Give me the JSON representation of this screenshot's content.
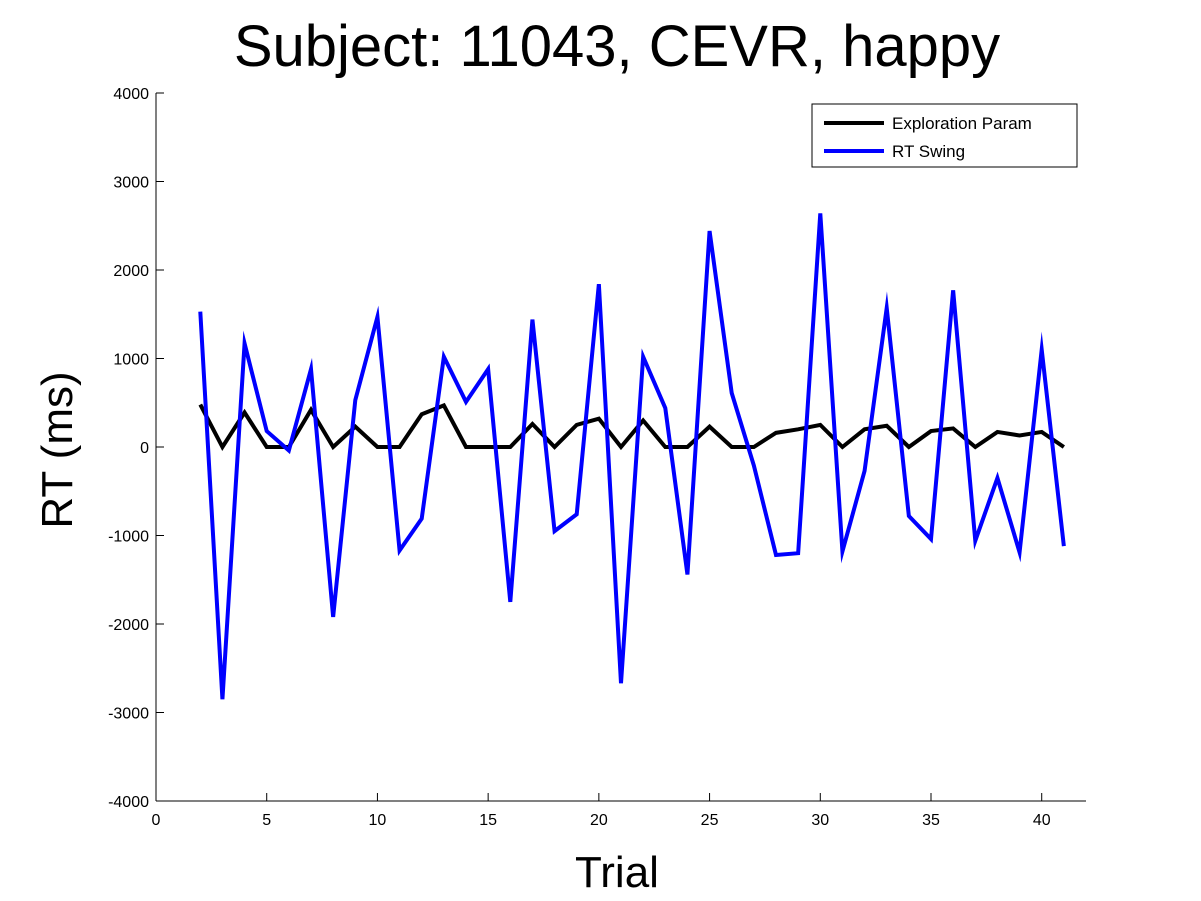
{
  "chart_data": {
    "type": "line",
    "title": "Subject: 11043, CEVR, happy",
    "xlabel": "Trial",
    "ylabel": "RT (ms)",
    "xlim": [
      0,
      42
    ],
    "ylim": [
      -4000,
      4000
    ],
    "xticks": [
      0,
      5,
      10,
      15,
      20,
      25,
      30,
      35,
      40
    ],
    "yticks": [
      -4000,
      -3000,
      -2000,
      -1000,
      0,
      1000,
      2000,
      3000,
      4000
    ],
    "grid": false,
    "legend_position": "top-right",
    "x": [
      2,
      3,
      4,
      5,
      6,
      7,
      8,
      9,
      10,
      11,
      12,
      13,
      14,
      15,
      16,
      17,
      18,
      19,
      20,
      21,
      22,
      23,
      24,
      25,
      26,
      27,
      28,
      29,
      30,
      31,
      32,
      33,
      34,
      35,
      36,
      37,
      38,
      39,
      40,
      41
    ],
    "series": [
      {
        "name": "Exploration Param",
        "color": "#000000",
        "values": [
          480,
          0,
          390,
          0,
          0,
          420,
          0,
          230,
          0,
          0,
          370,
          470,
          0,
          0,
          0,
          260,
          0,
          250,
          320,
          0,
          300,
          0,
          0,
          230,
          0,
          0,
          160,
          200,
          250,
          0,
          200,
          240,
          0,
          180,
          210,
          0,
          170,
          130,
          170,
          0
        ]
      },
      {
        "name": "RT Swing",
        "color": "#0000ff",
        "values": [
          1530,
          -2850,
          1170,
          180,
          -40,
          880,
          -1920,
          530,
          1470,
          -1170,
          -810,
          1020,
          510,
          880,
          -1750,
          1440,
          -950,
          -760,
          1840,
          -2670,
          1020,
          440,
          -1440,
          2440,
          610,
          -210,
          -1220,
          -1200,
          2640,
          -1180,
          -270,
          1570,
          -780,
          -1040,
          1770,
          -1060,
          -350,
          -1190,
          1100,
          -1120
        ]
      }
    ]
  }
}
